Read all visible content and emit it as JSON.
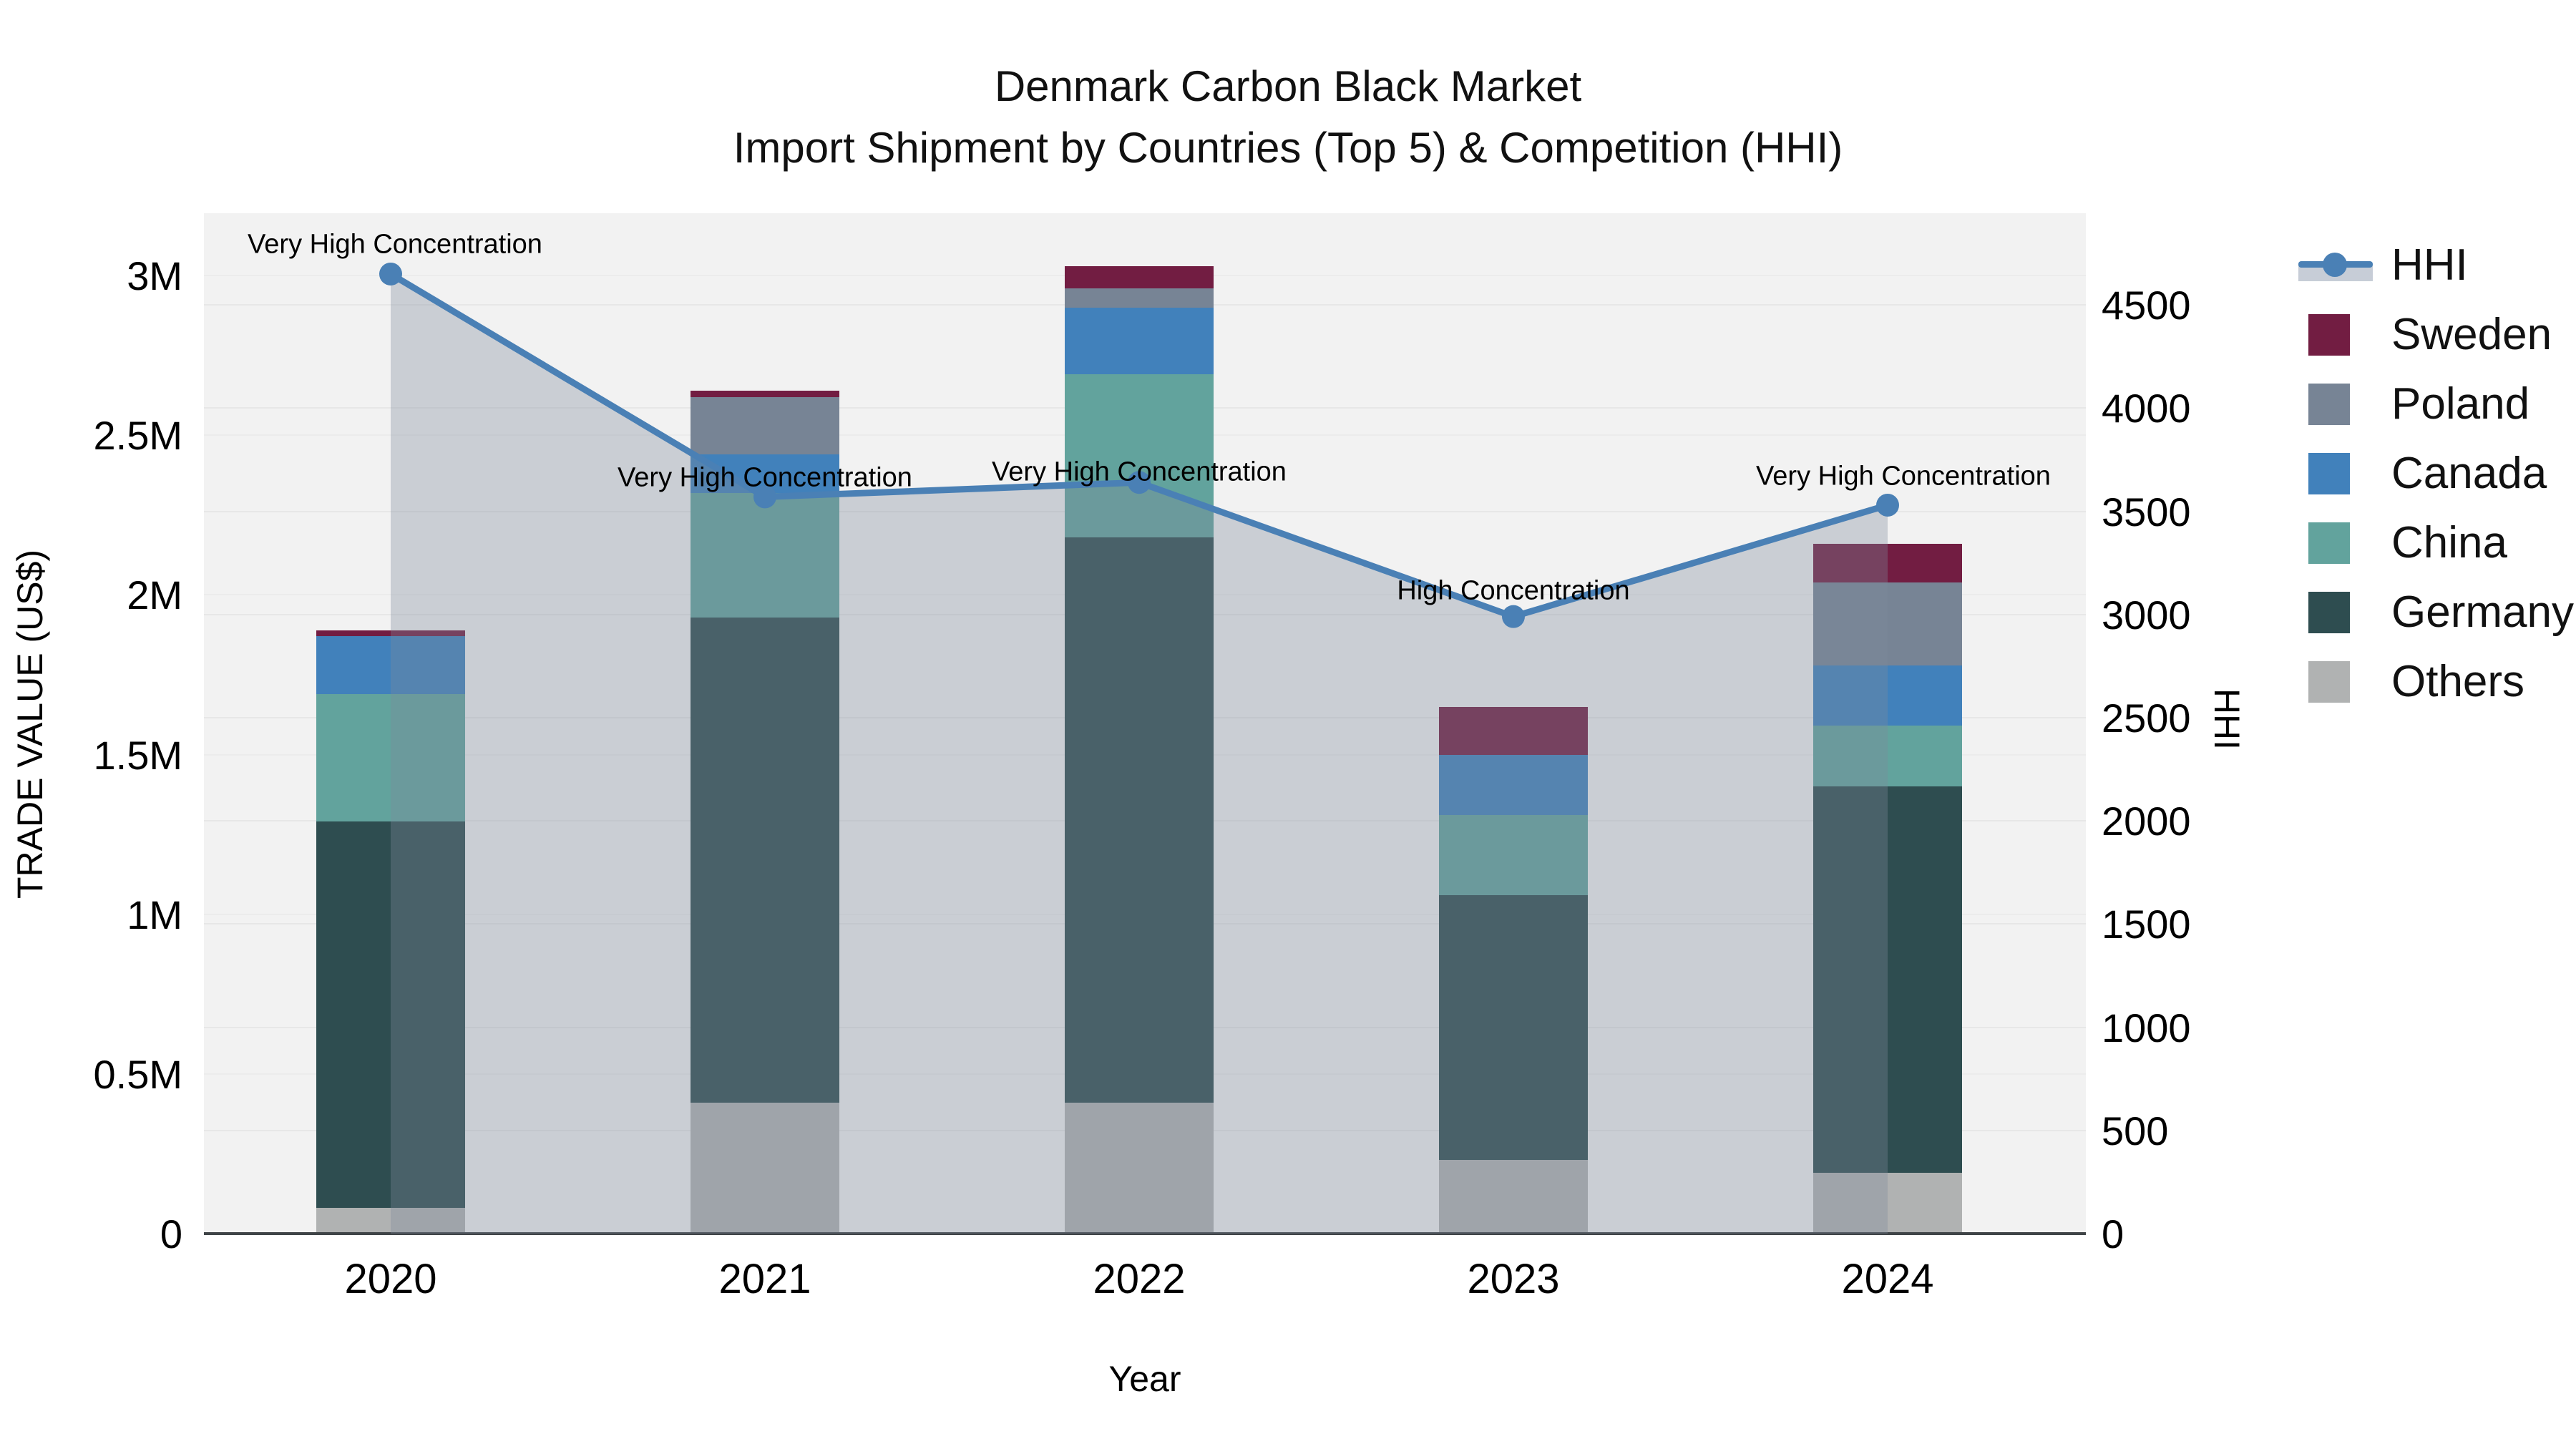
{
  "title": {
    "line1": "Denmark Carbon Black Market",
    "line2": "Import Shipment by Countries (Top 5) & Competition (HHI)"
  },
  "axes": {
    "x": {
      "title": "Year",
      "ticks": [
        "2020",
        "2021",
        "2022",
        "2023",
        "2024"
      ]
    },
    "y_left": {
      "title": "TRADE VALUE (US$)",
      "ticks": [
        {
          "label": "0",
          "value": 0
        },
        {
          "label": "0.5M",
          "value": 0.5
        },
        {
          "label": "1M",
          "value": 1
        },
        {
          "label": "1.5M",
          "value": 1.5
        },
        {
          "label": "2M",
          "value": 2
        },
        {
          "label": "2.5M",
          "value": 2.5
        },
        {
          "label": "3M",
          "value": 3
        }
      ]
    },
    "y_right": {
      "title": "HHI",
      "ticks": [
        {
          "label": "0",
          "value": 0
        },
        {
          "label": "500",
          "value": 500
        },
        {
          "label": "1000",
          "value": 1000
        },
        {
          "label": "1500",
          "value": 1500
        },
        {
          "label": "2000",
          "value": 2000
        },
        {
          "label": "2500",
          "value": 2500
        },
        {
          "label": "3000",
          "value": 3000
        },
        {
          "label": "3500",
          "value": 3500
        },
        {
          "label": "4000",
          "value": 4000
        },
        {
          "label": "4500",
          "value": 4500
        }
      ]
    }
  },
  "legend": {
    "items": [
      {
        "label": "HHI",
        "type": "line",
        "color": "#4a80b5"
      },
      {
        "label": "Sweden",
        "type": "swatch",
        "color": "#721d42"
      },
      {
        "label": "Poland",
        "type": "swatch",
        "color": "#778495"
      },
      {
        "label": "Canada",
        "type": "swatch",
        "color": "#4181bb"
      },
      {
        "label": "China",
        "type": "swatch",
        "color": "#62a39d"
      },
      {
        "label": "Germany",
        "type": "swatch",
        "color": "#2e4d50"
      },
      {
        "label": "Others",
        "type": "swatch",
        "color": "#b0b2b2"
      }
    ]
  },
  "annotations": [
    {
      "year": "2020",
      "text": "Very High Concentration"
    },
    {
      "year": "2021",
      "text": "Very High Concentration"
    },
    {
      "year": "2022",
      "text": "Very High Concentration"
    },
    {
      "year": "2023",
      "text": "High Concentration"
    },
    {
      "year": "2024",
      "text": "Very High Concentration"
    }
  ],
  "chart_data": {
    "type": "combo: stacked-bar + line",
    "categories": [
      "2020",
      "2021",
      "2022",
      "2023",
      "2024"
    ],
    "bar_value_unit": "million US$ (trade value, left axis)",
    "series": [
      {
        "name": "Others",
        "color": "#b0b2b2",
        "values": [
          0.08,
          0.41,
          0.41,
          0.23,
          0.19
        ]
      },
      {
        "name": "Germany",
        "color": "#2e4d50",
        "values": [
          1.21,
          1.52,
          1.77,
          0.83,
          1.21
        ]
      },
      {
        "name": "China",
        "color": "#62a39d",
        "values": [
          0.4,
          0.39,
          0.51,
          0.25,
          0.19
        ]
      },
      {
        "name": "Canada",
        "color": "#4181bb",
        "values": [
          0.18,
          0.12,
          0.21,
          0.19,
          0.19
        ]
      },
      {
        "name": "Poland",
        "color": "#778495",
        "values": [
          0.0,
          0.18,
          0.06,
          0.0,
          0.26
        ]
      },
      {
        "name": "Sweden",
        "color": "#721d42",
        "values": [
          0.02,
          0.02,
          0.07,
          0.15,
          0.12
        ]
      }
    ],
    "bar_totals": [
      1.89,
      2.64,
      3.03,
      1.65,
      2.16
    ],
    "line": {
      "name": "HHI",
      "axis": "right",
      "color": "#4a80b5",
      "area_fill": "rgba(127,139,156,0.34)",
      "values": [
        4650,
        3570,
        3640,
        2990,
        3530
      ]
    },
    "ylim_left": [
      0,
      3.195
    ],
    "ylim_right": [
      0,
      4944
    ],
    "grid": true,
    "legend_position": "right"
  }
}
